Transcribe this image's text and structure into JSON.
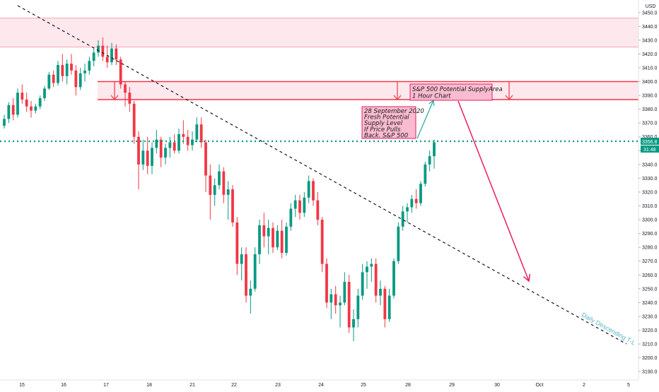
{
  "chart_data": {
    "type": "candlestick",
    "currency_label": "USD",
    "y_ticks": [
      3190,
      3200,
      3210,
      3220,
      3230,
      3240,
      3250,
      3260,
      3270,
      3280,
      3290,
      3300,
      3310,
      3320,
      3330,
      3340,
      3350,
      3360,
      3370,
      3380,
      3390,
      3400,
      3410,
      3420,
      3430,
      3440,
      3450
    ],
    "y_tick_labels": [
      "3190.0",
      "3200.0",
      "3210.0",
      "3220.0",
      "3230.0",
      "3240.0",
      "3250.0",
      "3260.0",
      "3270.0",
      "3280.0",
      "3290.0",
      "3300.0",
      "3310.0",
      "3320.0",
      "3330.0",
      "3340.0",
      "3350.0",
      "3360.0",
      "3370.0",
      "3380.0",
      "3390.0",
      "3400.0",
      "3410.0",
      "3420.0",
      "3430.0",
      "3440.0",
      "3450.0"
    ],
    "ylim": [
      3187,
      3455
    ],
    "x_labels": [
      "15",
      "16",
      "17",
      "18",
      "21",
      "22",
      "23",
      "24",
      "25",
      "28",
      "29",
      "30",
      "Oct",
      "2",
      "5"
    ],
    "current_price_label": "3356.8",
    "countdown_label": "31:48",
    "current_price": 3356.8,
    "upper_zone": {
      "low": 3425,
      "high": 3446
    },
    "supply_zone": {
      "low": 3387,
      "high": 3400
    },
    "trendline": {
      "start_price": 3455,
      "end_price": 3210
    },
    "colors": {
      "up": "#089981",
      "down": "#f23645",
      "zone_fill": "#fde8ee",
      "zone_line": "#f23645",
      "price_line": "#089981",
      "arrow_red": "#e91e63",
      "arrow_teal": "#26a69a",
      "trendline": "#131722",
      "trendline_label": "#5ab4c5",
      "annot_fill": "#f8bbd0",
      "annot_border": "#e91e63"
    },
    "candles": [
      [
        3368,
        3376,
        3366,
        3373
      ],
      [
        3373,
        3385,
        3370,
        3383
      ],
      [
        3383,
        3388,
        3372,
        3376
      ],
      [
        3376,
        3395,
        3374,
        3392
      ],
      [
        3392,
        3398,
        3384,
        3387
      ],
      [
        3387,
        3392,
        3378,
        3382
      ],
      [
        3382,
        3386,
        3374,
        3379
      ],
      [
        3379,
        3384,
        3377,
        3382
      ],
      [
        3382,
        3390,
        3380,
        3388
      ],
      [
        3388,
        3397,
        3386,
        3395
      ],
      [
        3395,
        3407,
        3394,
        3405
      ],
      [
        3405,
        3408,
        3396,
        3399
      ],
      [
        3399,
        3415,
        3397,
        3412
      ],
      [
        3412,
        3420,
        3400,
        3404
      ],
      [
        3404,
        3416,
        3398,
        3413
      ],
      [
        3413,
        3420,
        3405,
        3408
      ],
      [
        3408,
        3412,
        3390,
        3396
      ],
      [
        3396,
        3410,
        3394,
        3406
      ],
      [
        3406,
        3413,
        3400,
        3408
      ],
      [
        3408,
        3418,
        3405,
        3415
      ],
      [
        3415,
        3424,
        3411,
        3421
      ],
      [
        3421,
        3430,
        3418,
        3426
      ],
      [
        3426,
        3432,
        3415,
        3418
      ],
      [
        3418,
        3426,
        3410,
        3414
      ],
      [
        3414,
        3428,
        3412,
        3424
      ],
      [
        3424,
        3427,
        3412,
        3416
      ],
      [
        3416,
        3418,
        3395,
        3398
      ],
      [
        3398,
        3400,
        3382,
        3392
      ],
      [
        3392,
        3396,
        3378,
        3384
      ],
      [
        3384,
        3386,
        3355,
        3360
      ],
      [
        3360,
        3364,
        3322,
        3340
      ],
      [
        3340,
        3358,
        3336,
        3350
      ],
      [
        3350,
        3360,
        3333,
        3339
      ],
      [
        3339,
        3356,
        3333,
        3352
      ],
      [
        3352,
        3365,
        3348,
        3358
      ],
      [
        3358,
        3360,
        3338,
        3345
      ],
      [
        3345,
        3355,
        3340,
        3352
      ],
      [
        3352,
        3360,
        3345,
        3356
      ],
      [
        3356,
        3362,
        3348,
        3350
      ],
      [
        3350,
        3366,
        3348,
        3362
      ],
      [
        3362,
        3372,
        3355,
        3360
      ],
      [
        3360,
        3365,
        3350,
        3354
      ],
      [
        3354,
        3364,
        3350,
        3358
      ],
      [
        3358,
        3374,
        3356,
        3369
      ],
      [
        3369,
        3374,
        3352,
        3356
      ],
      [
        3356,
        3358,
        3320,
        3332
      ],
      [
        3332,
        3340,
        3300,
        3318
      ],
      [
        3318,
        3330,
        3310,
        3325
      ],
      [
        3325,
        3340,
        3322,
        3335
      ],
      [
        3335,
        3338,
        3312,
        3318
      ],
      [
        3318,
        3328,
        3300,
        3322
      ],
      [
        3322,
        3325,
        3295,
        3298
      ],
      [
        3298,
        3302,
        3260,
        3268
      ],
      [
        3268,
        3280,
        3256,
        3275
      ],
      [
        3275,
        3280,
        3240,
        3245
      ],
      [
        3245,
        3256,
        3232,
        3250
      ],
      [
        3250,
        3280,
        3248,
        3275
      ],
      [
        3275,
        3300,
        3268,
        3296
      ],
      [
        3296,
        3305,
        3280,
        3288
      ],
      [
        3288,
        3300,
        3275,
        3294
      ],
      [
        3294,
        3298,
        3276,
        3280
      ],
      [
        3280,
        3296,
        3278,
        3292
      ],
      [
        3292,
        3300,
        3272,
        3276
      ],
      [
        3276,
        3298,
        3274,
        3295
      ],
      [
        3295,
        3312,
        3292,
        3308
      ],
      [
        3308,
        3318,
        3302,
        3314
      ],
      [
        3314,
        3318,
        3300,
        3305
      ],
      [
        3305,
        3320,
        3302,
        3316
      ],
      [
        3316,
        3332,
        3312,
        3328
      ],
      [
        3328,
        3330,
        3310,
        3314
      ],
      [
        3314,
        3320,
        3296,
        3300
      ],
      [
        3300,
        3302,
        3262,
        3268
      ],
      [
        3268,
        3272,
        3236,
        3240
      ],
      [
        3240,
        3250,
        3228,
        3246
      ],
      [
        3246,
        3252,
        3232,
        3238
      ],
      [
        3238,
        3245,
        3222,
        3240
      ],
      [
        3240,
        3262,
        3238,
        3255
      ],
      [
        3255,
        3260,
        3218,
        3222
      ],
      [
        3222,
        3235,
        3212,
        3228
      ],
      [
        3228,
        3250,
        3222,
        3245
      ],
      [
        3245,
        3268,
        3242,
        3262
      ],
      [
        3262,
        3270,
        3250,
        3266
      ],
      [
        3266,
        3272,
        3255,
        3268
      ],
      [
        3268,
        3272,
        3240,
        3245
      ],
      [
        3245,
        3256,
        3238,
        3250
      ],
      [
        3250,
        3252,
        3222,
        3228
      ],
      [
        3228,
        3250,
        3226,
        3245
      ],
      [
        3245,
        3272,
        3243,
        3270
      ],
      [
        3270,
        3298,
        3268,
        3295
      ],
      [
        3295,
        3310,
        3292,
        3306
      ],
      [
        3306,
        3312,
        3298,
        3309
      ],
      [
        3309,
        3318,
        3305,
        3315
      ],
      [
        3315,
        3322,
        3308,
        3312
      ],
      [
        3312,
        3328,
        3310,
        3326
      ],
      [
        3326,
        3342,
        3324,
        3340
      ],
      [
        3340,
        3350,
        3335,
        3346
      ],
      [
        3346,
        3358,
        3337,
        3356
      ]
    ]
  },
  "annotations": {
    "supply_box": [
      "S&P 500 Potential SupplyArea",
      "1 Hour Chart"
    ],
    "note_box": [
      "28 September 2020",
      "Fresh Potential",
      "Supply Level",
      "If Price Pulls",
      "Back. S&P 500"
    ],
    "trendline_label": "Daily Descending T-L"
  }
}
